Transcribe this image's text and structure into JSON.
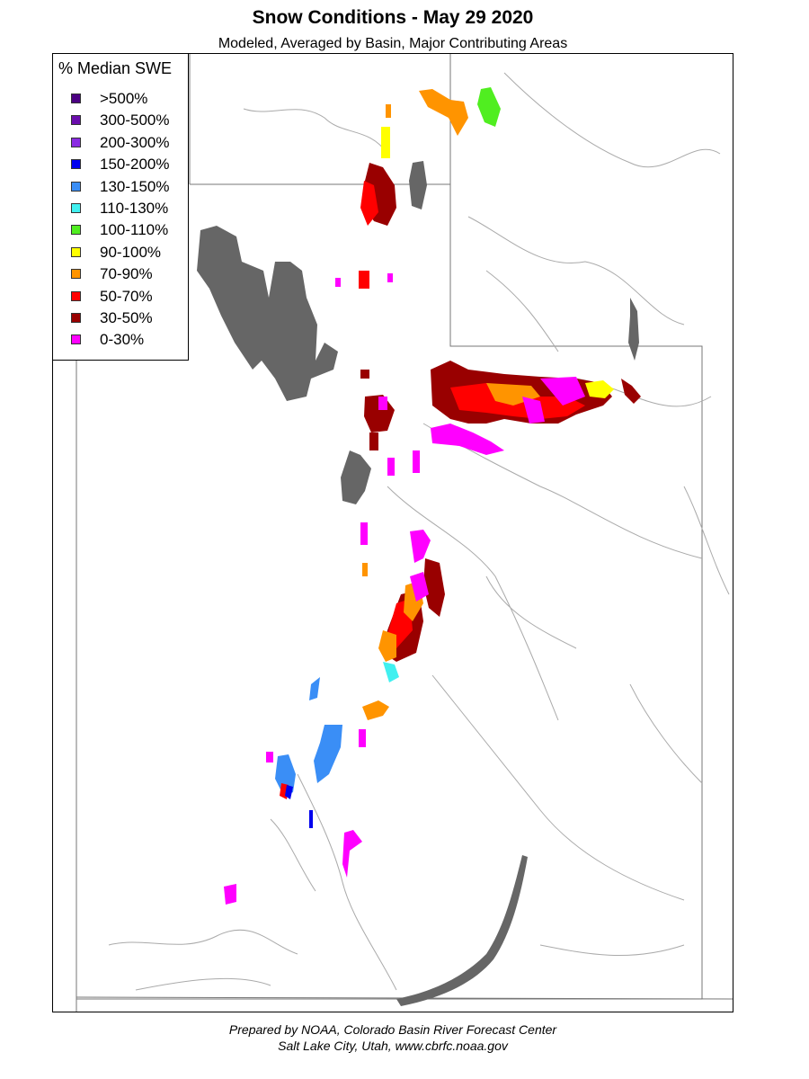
{
  "title": "Snow Conditions - May 29 2020",
  "subtitle": "Modeled, Averaged by Basin, Major Contributing Areas",
  "legend": {
    "title": "% Median SWE",
    "items": [
      {
        "label": ">500%",
        "color": "#4b0082"
      },
      {
        "label": "300-500%",
        "color": "#6a0dad"
      },
      {
        "label": "200-300%",
        "color": "#8a2be2"
      },
      {
        "label": "150-200%",
        "color": "#0000ee"
      },
      {
        "label": "130-150%",
        "color": "#3a8ef6"
      },
      {
        "label": "110-130%",
        "color": "#40f0f0"
      },
      {
        "label": "100-110%",
        "color": "#50ee20"
      },
      {
        "label": "90-100%",
        "color": "#ffff00"
      },
      {
        "label": "70-90%",
        "color": "#ff9400"
      },
      {
        "label": "50-70%",
        "color": "#ff0000"
      },
      {
        "label": "30-50%",
        "color": "#990000"
      },
      {
        "label": "0-30%",
        "color": "#ff00ff"
      }
    ]
  },
  "footer": {
    "line1": "Prepared by NOAA, Colorado Basin River Forecast Center",
    "line2": "Salt Lake City, Utah, www.cbrfc.noaa.gov"
  },
  "colors": {
    "lake": "#666666",
    "river": "#9a9a9a",
    "border": "#777777"
  }
}
